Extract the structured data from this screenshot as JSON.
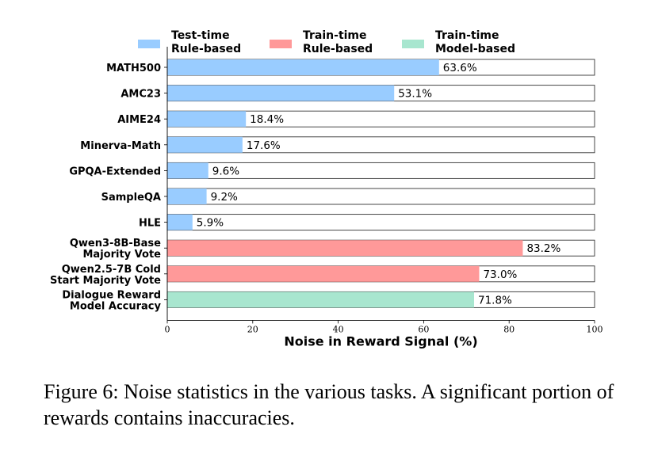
{
  "chart_data": {
    "type": "bar",
    "orientation": "horizontal",
    "categories": [
      [
        "MATH500"
      ],
      [
        "AMC23"
      ],
      [
        "AIME24"
      ],
      [
        "Minerva-Math"
      ],
      [
        "GPQA-Extended"
      ],
      [
        "SampleQA"
      ],
      [
        "HLE"
      ],
      [
        "Qwen3-8B-Base",
        "Majority Vote"
      ],
      [
        "Qwen2.5-7B Cold",
        "Start Majority Vote"
      ],
      [
        "Dialogue Reward",
        "Model Accuracy"
      ]
    ],
    "values": [
      63.6,
      53.1,
      18.4,
      17.6,
      9.6,
      9.2,
      5.9,
      83.2,
      73.0,
      71.8
    ],
    "value_labels": [
      "63.6%",
      "53.1%",
      "18.4%",
      "17.6%",
      "9.6%",
      "9.2%",
      "5.9%",
      "83.2%",
      "73.0%",
      "71.8%"
    ],
    "groups": [
      0,
      0,
      0,
      0,
      0,
      0,
      0,
      1,
      1,
      2
    ],
    "legend": [
      {
        "line1": "Test-time",
        "line2": "Rule-based",
        "color": "#99ccff"
      },
      {
        "line1": "Train-time",
        "line2": "Rule-based",
        "color": "#ff9999"
      },
      {
        "line1": "Train-time",
        "line2": "Model-based",
        "color": "#a8e6cf"
      }
    ],
    "xlabel": "Noise in Reward Signal (%)",
    "xlim": [
      0,
      100
    ],
    "xticks": [
      "0",
      "20",
      "40",
      "60",
      "80",
      "100"
    ],
    "background_bar_value": 100,
    "grid": false,
    "legend_position": "top"
  },
  "caption": "Figure 6: Noise statistics in the various tasks. A significant portion of rewards contains inaccuracies."
}
